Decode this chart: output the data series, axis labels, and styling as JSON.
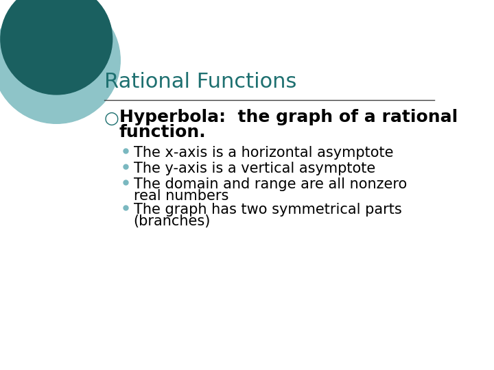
{
  "title": "Rational Functions",
  "title_color": "#1E7070",
  "title_fontsize": 22,
  "background_color": "#FFFFFF",
  "separator_color": "#404040",
  "bullet_symbol": "○",
  "bullet_color": "#1E7070",
  "bullet_fontsize": 18,
  "bullet_text_line1": "Hyperbola:  the graph of a rational",
  "bullet_text_line2": "function.",
  "sub_bullet_color": "#7AB8C0",
  "sub_bullet_fontsize": 15,
  "sub_bullets_line1": [
    "The x-axis is a horizontal asymptote",
    "The y-axis is a vertical asymptote",
    "The domain and range are all nonzero",
    "The graph has two symmetrical parts"
  ],
  "sub_bullets_line2": [
    "",
    "",
    "real numbers",
    "(branches)"
  ],
  "circle_dark_color": "#1A6060",
  "circle_light_color": "#8EC4C8"
}
